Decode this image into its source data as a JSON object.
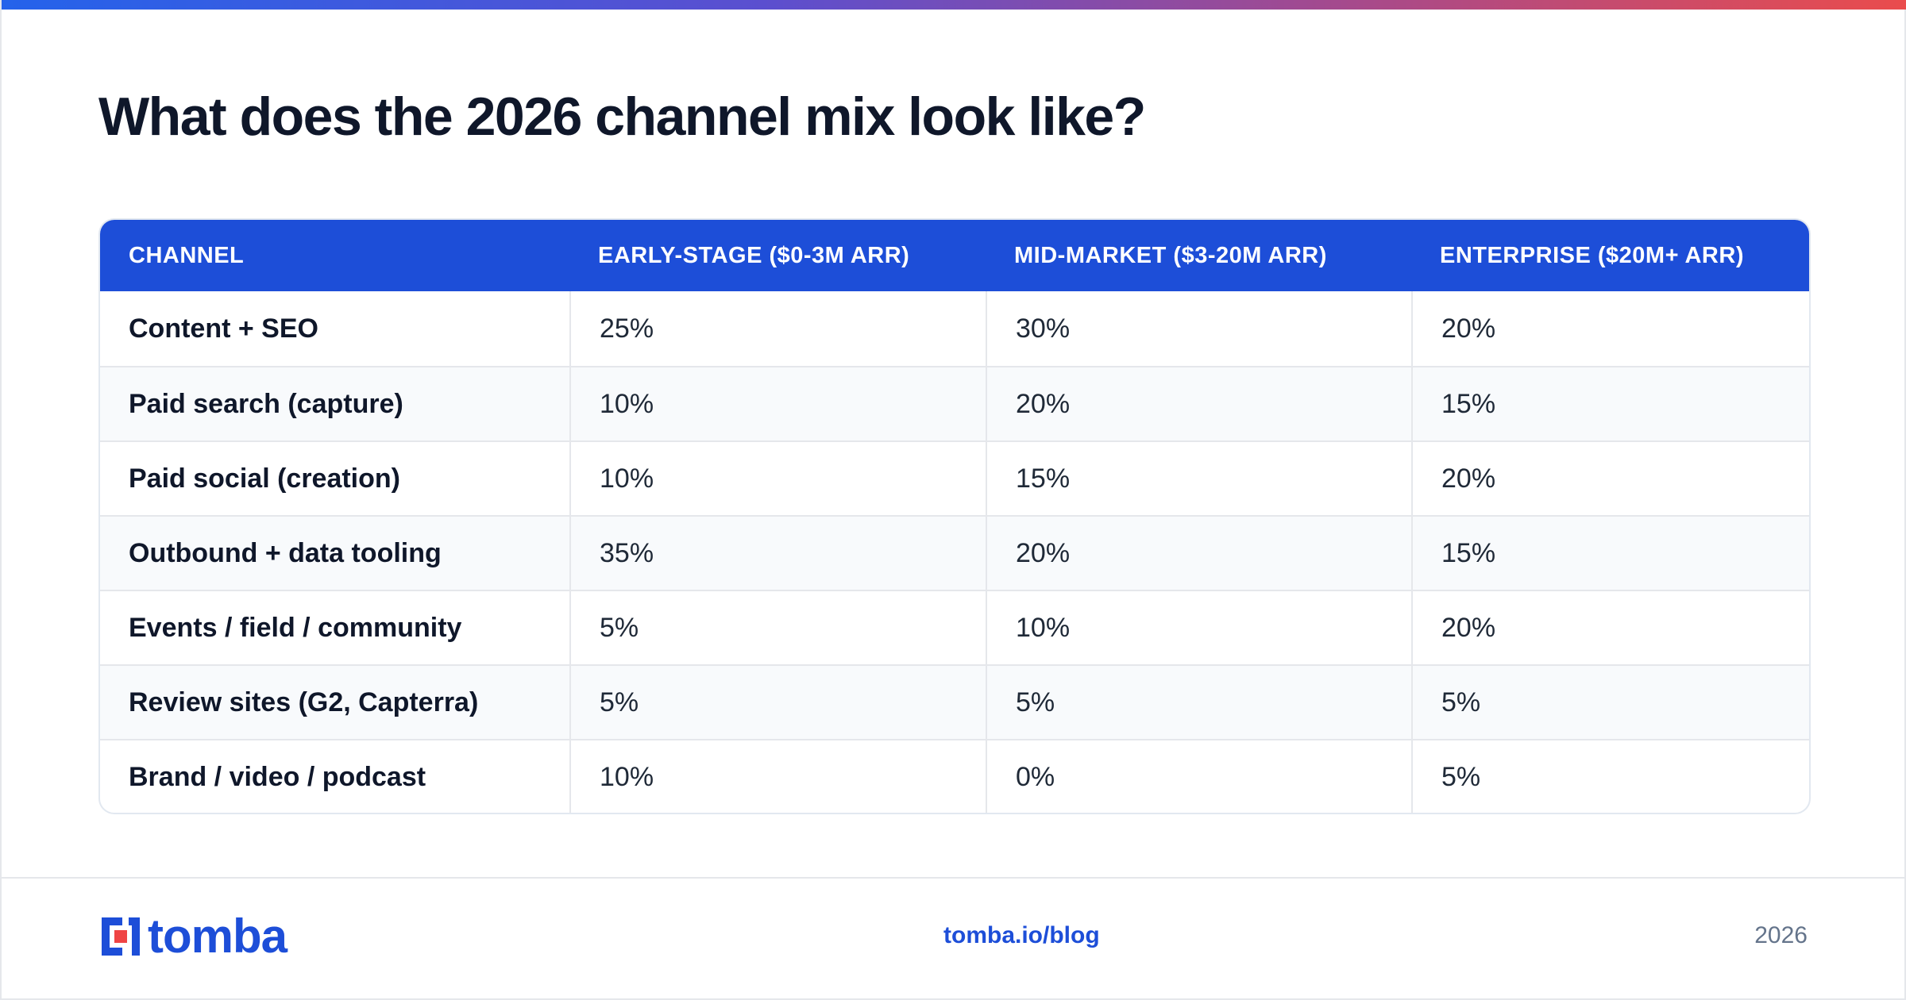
{
  "title": "What does the 2026 channel mix look like?",
  "table": {
    "headers": [
      "CHANNEL",
      "EARLY-STAGE ($0-3M ARR)",
      "MID-MARKET ($3-20M ARR)",
      "ENTERPRISE ($20M+ ARR)"
    ],
    "rows": [
      [
        "Content + SEO",
        "25%",
        "30%",
        "20%"
      ],
      [
        "Paid search (capture)",
        "10%",
        "20%",
        "15%"
      ],
      [
        "Paid social (creation)",
        "10%",
        "15%",
        "20%"
      ],
      [
        "Outbound + data tooling",
        "35%",
        "20%",
        "15%"
      ],
      [
        "Events / field / community",
        "5%",
        "10%",
        "20%"
      ],
      [
        "Review sites (G2, Capterra)",
        "5%",
        "5%",
        "5%"
      ],
      [
        "Brand / video / podcast",
        "10%",
        "0%",
        "5%"
      ]
    ]
  },
  "footer": {
    "logo_text": "tomba",
    "link": "tomba.io/blog",
    "year": "2026"
  },
  "colors": {
    "accent": "#1d4ed8",
    "logo_red": "#ef4444",
    "gradient_start": "#2463eb",
    "gradient_end": "#ea4c4c"
  }
}
